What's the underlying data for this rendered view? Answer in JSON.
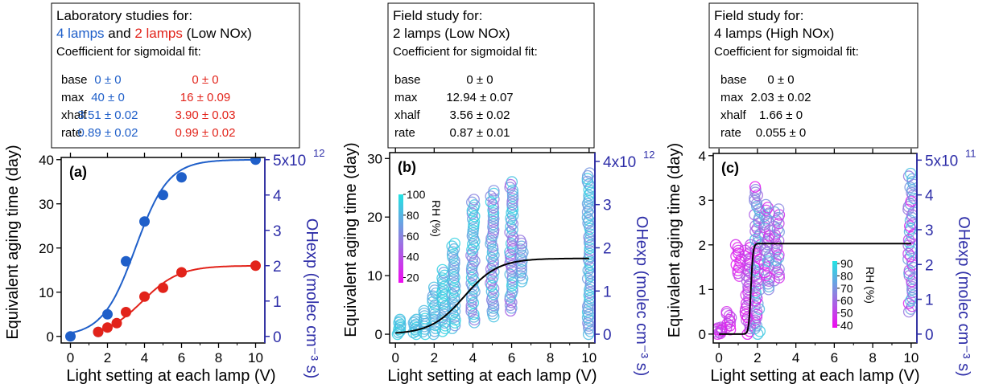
{
  "colors": {
    "blue": "#1f5fc9",
    "red": "#e2231a",
    "black": "#000000",
    "axis_right": "#2e2ea8",
    "rh_high": "#22e3e3",
    "rh_mid": "#8f7fe0",
    "rh_low": "#f00af0"
  },
  "chart_data": [
    {
      "type": "scatter",
      "panel_label": "(a)",
      "xlabel": "Light setting at each lamp (V)",
      "ylabel": "Equivalent aging time (day)",
      "y2label": "OHexp (molec cm⁻³ s)",
      "xlim": [
        -0.5,
        10.5
      ],
      "ylim": [
        -1.5,
        40.5
      ],
      "xticks": [
        0,
        2,
        4,
        6,
        8,
        10
      ],
      "yticks": [
        0,
        10,
        20,
        30,
        40
      ],
      "y2ticks": [
        0,
        1,
        2,
        3,
        4,
        5
      ],
      "y2_exponent_label": "5x10",
      "y2_exponent_power": "12",
      "legend_box": {
        "lines": [
          {
            "parts": [
              {
                "text": "Laboratory studies for:",
                "color": "black"
              }
            ]
          },
          {
            "parts": [
              {
                "text": "4 lamps",
                "color": "blue"
              },
              {
                "text": " and ",
                "color": "black"
              },
              {
                "text": "2 lamps",
                "color": "red"
              },
              {
                "text": " (Low NOx)",
                "color": "black"
              }
            ]
          },
          {
            "parts": [
              {
                "text": "Coefficient for sigmoidal fit:",
                "color": "black"
              }
            ]
          }
        ],
        "rows": [
          {
            "name": "base",
            "values": [
              {
                "text": "0 ± 0",
                "color": "blue"
              },
              {
                "text": "0 ± 0",
                "color": "red"
              }
            ]
          },
          {
            "name": "max",
            "values": [
              {
                "text": "40 ± 0",
                "color": "blue"
              },
              {
                "text": "16 ± 0.09",
                "color": "red"
              }
            ]
          },
          {
            "name": "xhalf",
            "values": [
              {
                "text": "3.51 ± 0.02",
                "color": "blue"
              },
              {
                "text": "3.90 ± 0.03",
                "color": "red"
              }
            ]
          },
          {
            "name": "rate",
            "values": [
              {
                "text": "0.89 ± 0.02",
                "color": "blue"
              },
              {
                "text": "0.99 ± 0.02",
                "color": "red"
              }
            ]
          }
        ]
      },
      "series": [
        {
          "name": "4 lamps",
          "color": "blue",
          "x": [
            0,
            1.5,
            2,
            3,
            4,
            5,
            6,
            10
          ],
          "y": [
            0,
            1,
            5,
            17,
            26,
            32,
            36,
            40
          ],
          "fit": {
            "base": 0,
            "max": 40,
            "xhalf": 3.51,
            "rate": 0.89
          }
        },
        {
          "name": "2 lamps",
          "color": "red",
          "x": [
            1.5,
            2,
            2.5,
            3,
            4,
            5,
            6,
            10
          ],
          "y": [
            1,
            2,
            3,
            5.5,
            9,
            11,
            14.5,
            16
          ],
          "fit": {
            "base": 0,
            "max": 16,
            "xhalf": 3.9,
            "rate": 0.99
          }
        }
      ]
    },
    {
      "type": "scatter",
      "panel_label": "(b)",
      "xlabel": "Light setting at each lamp (V)",
      "ylabel": "Equivalent aging time (day)",
      "y2label": "OHexp (molec cm⁻³ s)",
      "xlim": [
        -0.3,
        10.3
      ],
      "ylim": [
        -1.5,
        31
      ],
      "xticks": [
        0,
        2,
        4,
        6,
        8,
        10
      ],
      "yticks": [
        0,
        10,
        20,
        30
      ],
      "y2ticks": [
        0,
        1,
        2,
        3,
        4
      ],
      "y2_exponent_label": "4x10",
      "y2_exponent_power": "12",
      "colorbar": {
        "label": "RH (%)",
        "ticks": [
          20,
          40,
          60,
          80,
          100
        ],
        "range": [
          15,
          100
        ]
      },
      "legend_box": {
        "lines": [
          {
            "parts": [
              {
                "text": "Field study for:",
                "color": "black"
              }
            ]
          },
          {
            "parts": [
              {
                "text": "2 lamps (Low NOx)",
                "color": "black"
              }
            ]
          },
          {
            "parts": [
              {
                "text": "Coefficient for sigmoidal fit:",
                "color": "black"
              }
            ]
          }
        ],
        "rows": [
          {
            "name": "base",
            "values": [
              {
                "text": "0 ± 0",
                "color": "black"
              }
            ]
          },
          {
            "name": "max",
            "values": [
              {
                "text": "12.94 ± 0.07",
                "color": "black"
              }
            ]
          },
          {
            "name": "xhalf",
            "values": [
              {
                "text": "3.56 ± 0.02",
                "color": "black"
              }
            ]
          },
          {
            "name": "rate",
            "values": [
              {
                "text": "0.87 ± 0.01",
                "color": "black"
              }
            ]
          }
        ]
      },
      "scatter_groups": [
        {
          "x": 0.2,
          "ymin": 0,
          "ymax": 2.5,
          "rh": [
            80,
            95
          ]
        },
        {
          "x": 1.0,
          "ymin": 0,
          "ymax": 2.5,
          "rh": [
            75,
            95
          ]
        },
        {
          "x": 1.5,
          "ymin": 0,
          "ymax": 4,
          "rh": [
            75,
            95
          ]
        },
        {
          "x": 2.0,
          "ymin": 0,
          "ymax": 8,
          "rh": [
            70,
            95
          ]
        },
        {
          "x": 2.5,
          "ymin": 0.5,
          "ymax": 11,
          "rh": [
            70,
            95
          ]
        },
        {
          "x": 3.0,
          "ymin": 1,
          "ymax": 15.5,
          "rh": [
            65,
            95
          ]
        },
        {
          "x": 4.0,
          "ymin": 2,
          "ymax": 23,
          "rh": [
            55,
            95
          ]
        },
        {
          "x": 5.0,
          "ymin": 3,
          "ymax": 24.5,
          "rh": [
            50,
            95
          ]
        },
        {
          "x": 6.0,
          "ymin": 4,
          "ymax": 26,
          "rh": [
            45,
            95
          ]
        },
        {
          "x": 6.5,
          "ymin": 9,
          "ymax": 16,
          "rh": [
            50,
            90
          ]
        },
        {
          "x": 10.0,
          "ymin": 0,
          "ymax": 27.5,
          "rh": [
            60,
            95
          ]
        }
      ],
      "series": [
        {
          "name": "sigmoidal fit",
          "color": "black",
          "fit": {
            "base": 0,
            "max": 12.94,
            "xhalf": 3.56,
            "rate": 0.87
          }
        }
      ]
    },
    {
      "type": "scatter",
      "panel_label": "(c)",
      "xlabel": "Light setting at each lamp (V)",
      "ylabel": "Equivalent aging time (day)",
      "y2label": "OHexp (molec cm⁻³ s)",
      "xlim": [
        -0.3,
        10.3
      ],
      "ylim": [
        -0.2,
        4.05
      ],
      "xticks": [
        0,
        2,
        4,
        6,
        8,
        10
      ],
      "yticks": [
        0,
        1,
        2,
        3,
        4
      ],
      "y2ticks": [
        0,
        1,
        2,
        3,
        4,
        5
      ],
      "y2_exponent_label": "5x10",
      "y2_exponent_power": "11",
      "colorbar": {
        "label": "RH (%)",
        "ticks": [
          40,
          50,
          60,
          70,
          80,
          90
        ],
        "range": [
          38,
          92
        ]
      },
      "legend_box": {
        "lines": [
          {
            "parts": [
              {
                "text": "Field study for:",
                "color": "black"
              }
            ]
          },
          {
            "parts": [
              {
                "text": "4 lamps (High NOx)",
                "color": "black"
              }
            ]
          },
          {
            "parts": [
              {
                "text": "Coefficient for sigmoidal fit:",
                "color": "black"
              }
            ]
          }
        ],
        "rows": [
          {
            "name": "base",
            "values": [
              {
                "text": "0 ± 0",
                "color": "black"
              }
            ]
          },
          {
            "name": "max",
            "values": [
              {
                "text": "2.03 ± 0.02",
                "color": "black"
              }
            ]
          },
          {
            "name": "xhalf",
            "values": [
              {
                "text": "1.66 ± 0",
                "color": "black"
              }
            ]
          },
          {
            "name": "rate",
            "values": [
              {
                "text": "0.055 ± 0",
                "color": "black"
              }
            ]
          }
        ]
      },
      "scatter_groups": [
        {
          "x": 0.0,
          "ymin": 0,
          "ymax": 0.15,
          "rh": [
            40,
            60
          ]
        },
        {
          "x": 0.5,
          "ymin": 0.1,
          "ymax": 0.5,
          "rh": [
            40,
            55
          ]
        },
        {
          "x": 1.0,
          "ymin": 1.3,
          "ymax": 2.0,
          "rh": [
            40,
            50
          ]
        },
        {
          "x": 1.5,
          "ymin": 0,
          "ymax": 2.0,
          "rh": [
            40,
            60
          ]
        },
        {
          "x": 2.0,
          "ymin": 0,
          "ymax": 3.3,
          "rh": [
            40,
            90
          ]
        },
        {
          "x": 2.5,
          "ymin": 1.0,
          "ymax": 2.9,
          "rh": [
            40,
            85
          ]
        },
        {
          "x": 3.0,
          "ymin": 1.2,
          "ymax": 2.8,
          "rh": [
            45,
            80
          ]
        },
        {
          "x": 10.0,
          "ymin": 0.5,
          "ymax": 3.6,
          "rh": [
            40,
            85
          ]
        }
      ],
      "series": [
        {
          "name": "sigmoidal fit",
          "color": "black",
          "fit": {
            "base": 0,
            "max": 2.03,
            "xhalf": 1.66,
            "rate": 0.055
          }
        }
      ]
    }
  ]
}
